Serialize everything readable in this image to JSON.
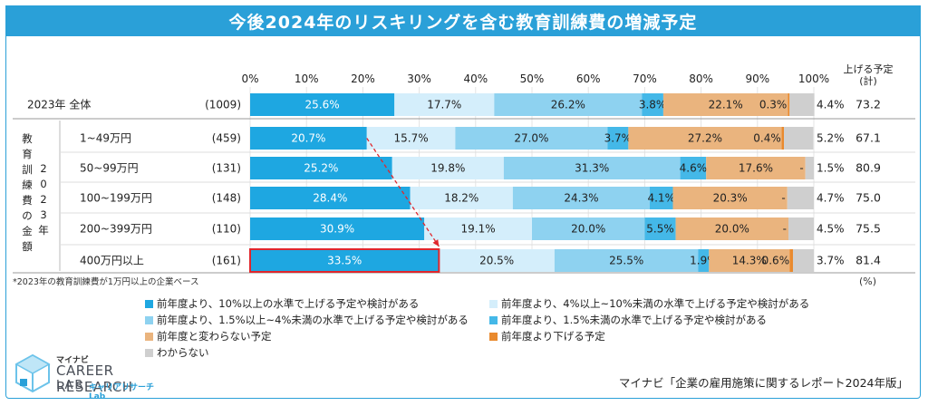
{
  "title": "今後2024年のリスキリングを含む教育訓練費の増減予定",
  "note": "*2023年の教育訓練費が1万円以上の企業ベース",
  "pct_unit": "(%)",
  "right_header": [
    "上げる予定",
    "(計)"
  ],
  "group_label_chars": [
    "教",
    "育",
    "訓",
    "練",
    "費",
    "の",
    "金",
    "額"
  ],
  "group_label_chars2": [
    "2",
    "0",
    "2",
    "3",
    "年"
  ],
  "logo": {
    "mynavi": "マイナビ",
    "career": "CAREER RESEARCH",
    "lab": "LAB",
    "lab_sub": "キャリアリサーチLab"
  },
  "source": "マイナビ「企業の雇用施策に関するレポート2024年版」",
  "colors": {
    "c1": "#1ea7e1",
    "c2": "#d4eefb",
    "c3": "#8ed2f0",
    "c4": "#44b8e8",
    "c5": "#eab47e",
    "c6": "#e98a2e",
    "c7": "#cfcfcf",
    "highlight": "#e0262c"
  },
  "chart_data": {
    "type": "bar",
    "orientation": "horizontal-stacked-100",
    "x_ticks": [
      "0%",
      "10%",
      "20%",
      "30%",
      "40%",
      "50%",
      "60%",
      "70%",
      "80%",
      "90%",
      "100%"
    ],
    "xlim": [
      0,
      100
    ],
    "series": [
      {
        "name": "前年度より、10%以上の水準で上げる予定や検討がある",
        "color": "#1ea7e1"
      },
      {
        "name": "前年度より、4%以上~10%未満の水準で上げる予定や検討がある",
        "color": "#d4eefb"
      },
      {
        "name": "前年度より、1.5%以上~4%未満の水準で上げる予定や検討がある",
        "color": "#8ed2f0"
      },
      {
        "name": "前年度より、1.5%未満の水準で上げる予定や検討がある",
        "color": "#44b8e8"
      },
      {
        "name": "前年度と変わらない予定",
        "color": "#eab47e"
      },
      {
        "name": "前年度より下げる予定",
        "color": "#e98a2e"
      },
      {
        "name": "わからない",
        "color": "#cfcfcf"
      }
    ],
    "rows": [
      {
        "label": "2023年 全体",
        "n": "(1009)",
        "values": [
          25.6,
          17.7,
          26.2,
          3.8,
          22.1,
          0.3,
          4.4
        ],
        "labels": [
          "25.6%",
          "17.7%",
          "26.2%",
          "3.8%",
          "22.1%",
          "0.3%",
          "4.4%"
        ],
        "total": "73.2"
      },
      {
        "label": "1~49万円",
        "n": "(459)",
        "values": [
          20.7,
          15.7,
          27.0,
          3.7,
          27.2,
          0.4,
          5.2
        ],
        "labels": [
          "20.7%",
          "15.7%",
          "27.0%",
          "3.7%",
          "27.2%",
          "0.4%",
          "5.2%"
        ],
        "total": "67.1"
      },
      {
        "label": "50~99万円",
        "n": "(131)",
        "values": [
          25.2,
          19.8,
          31.3,
          4.6,
          17.6,
          0.0,
          1.5
        ],
        "labels": [
          "25.2%",
          "19.8%",
          "31.3%",
          "4.6%",
          "17.6%",
          "-",
          "1.5%"
        ],
        "total": "80.9"
      },
      {
        "label": "100~199万円",
        "n": "(148)",
        "values": [
          28.4,
          18.2,
          24.3,
          4.1,
          20.3,
          0.0,
          4.7
        ],
        "labels": [
          "28.4%",
          "18.2%",
          "24.3%",
          "4.1%",
          "20.3%",
          "-",
          "4.7%"
        ],
        "total": "75.0"
      },
      {
        "label": "200~399万円",
        "n": "(110)",
        "values": [
          30.9,
          19.1,
          20.0,
          5.5,
          20.0,
          0.0,
          4.5
        ],
        "labels": [
          "30.9%",
          "19.1%",
          "20.0%",
          "5.5%",
          "20.0%",
          "-",
          "4.5%"
        ],
        "total": "75.5"
      },
      {
        "label": "400万円以上",
        "n": "(161)",
        "values": [
          33.5,
          20.5,
          25.5,
          1.9,
          14.3,
          0.6,
          3.7
        ],
        "labels": [
          "33.5%",
          "20.5%",
          "25.5%",
          "1.9%",
          "14.3%",
          "0.6%",
          "3.7%"
        ],
        "total": "81.4"
      }
    ]
  }
}
